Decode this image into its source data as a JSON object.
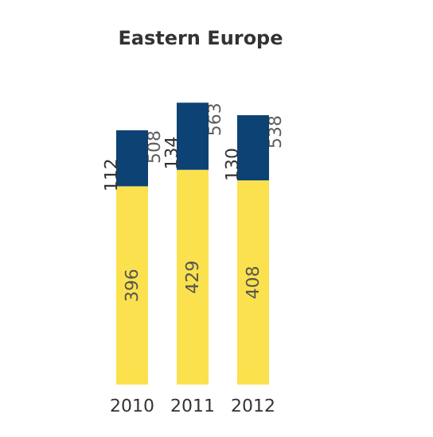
{
  "chart_data": {
    "type": "bar",
    "title": "Eastern Europe",
    "categories": [
      "2010",
      "2011",
      "2012"
    ],
    "stacked": true,
    "series": [
      {
        "color": "#fbe14d",
        "values": [
          396,
          429,
          408
        ]
      },
      {
        "color": "#0d4275",
        "values": [
          112,
          134,
          130
        ]
      }
    ],
    "data_labels": true,
    "totals": [
      "508",
      "563",
      "538"
    ]
  }
}
